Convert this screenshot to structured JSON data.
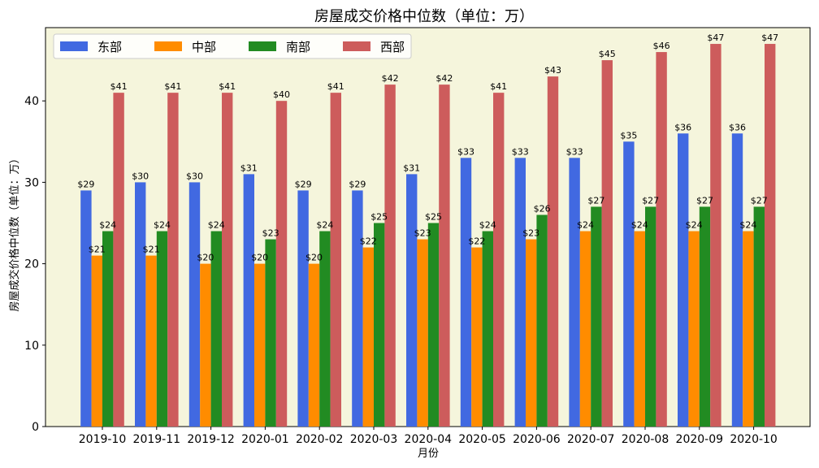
{
  "chart_data": {
    "type": "bar",
    "title": "房屋成交价格中位数（单位：万）",
    "xlabel": "月份",
    "ylabel": "房屋成交价格中位数（单位：万）",
    "ylim": [
      0,
      49
    ],
    "yticks": [
      0,
      10,
      20,
      30,
      40
    ],
    "grid": false,
    "legend_position": "top-left",
    "background": "#f5f5dc",
    "value_prefix": "$",
    "categories": [
      "2019-10",
      "2019-11",
      "2019-12",
      "2020-01",
      "2020-02",
      "2020-03",
      "2020-04",
      "2020-05",
      "2020-06",
      "2020-07",
      "2020-08",
      "2020-09",
      "2020-10"
    ],
    "series": [
      {
        "name": "东部",
        "color": "#4169e1",
        "values": [
          29,
          30,
          30,
          31,
          29,
          29,
          31,
          33,
          33,
          33,
          35,
          36,
          36
        ]
      },
      {
        "name": "中部",
        "color": "#ff8c00",
        "values": [
          21,
          21,
          20,
          20,
          20,
          22,
          23,
          22,
          23,
          24,
          24,
          24,
          24
        ]
      },
      {
        "name": "南部",
        "color": "#228b22",
        "values": [
          24,
          24,
          24,
          23,
          24,
          25,
          25,
          24,
          26,
          27,
          27,
          27,
          27
        ]
      },
      {
        "name": "西部",
        "color": "#cd5c5c",
        "values": [
          41,
          41,
          41,
          40,
          41,
          42,
          42,
          41,
          43,
          45,
          46,
          47,
          47
        ]
      }
    ]
  }
}
